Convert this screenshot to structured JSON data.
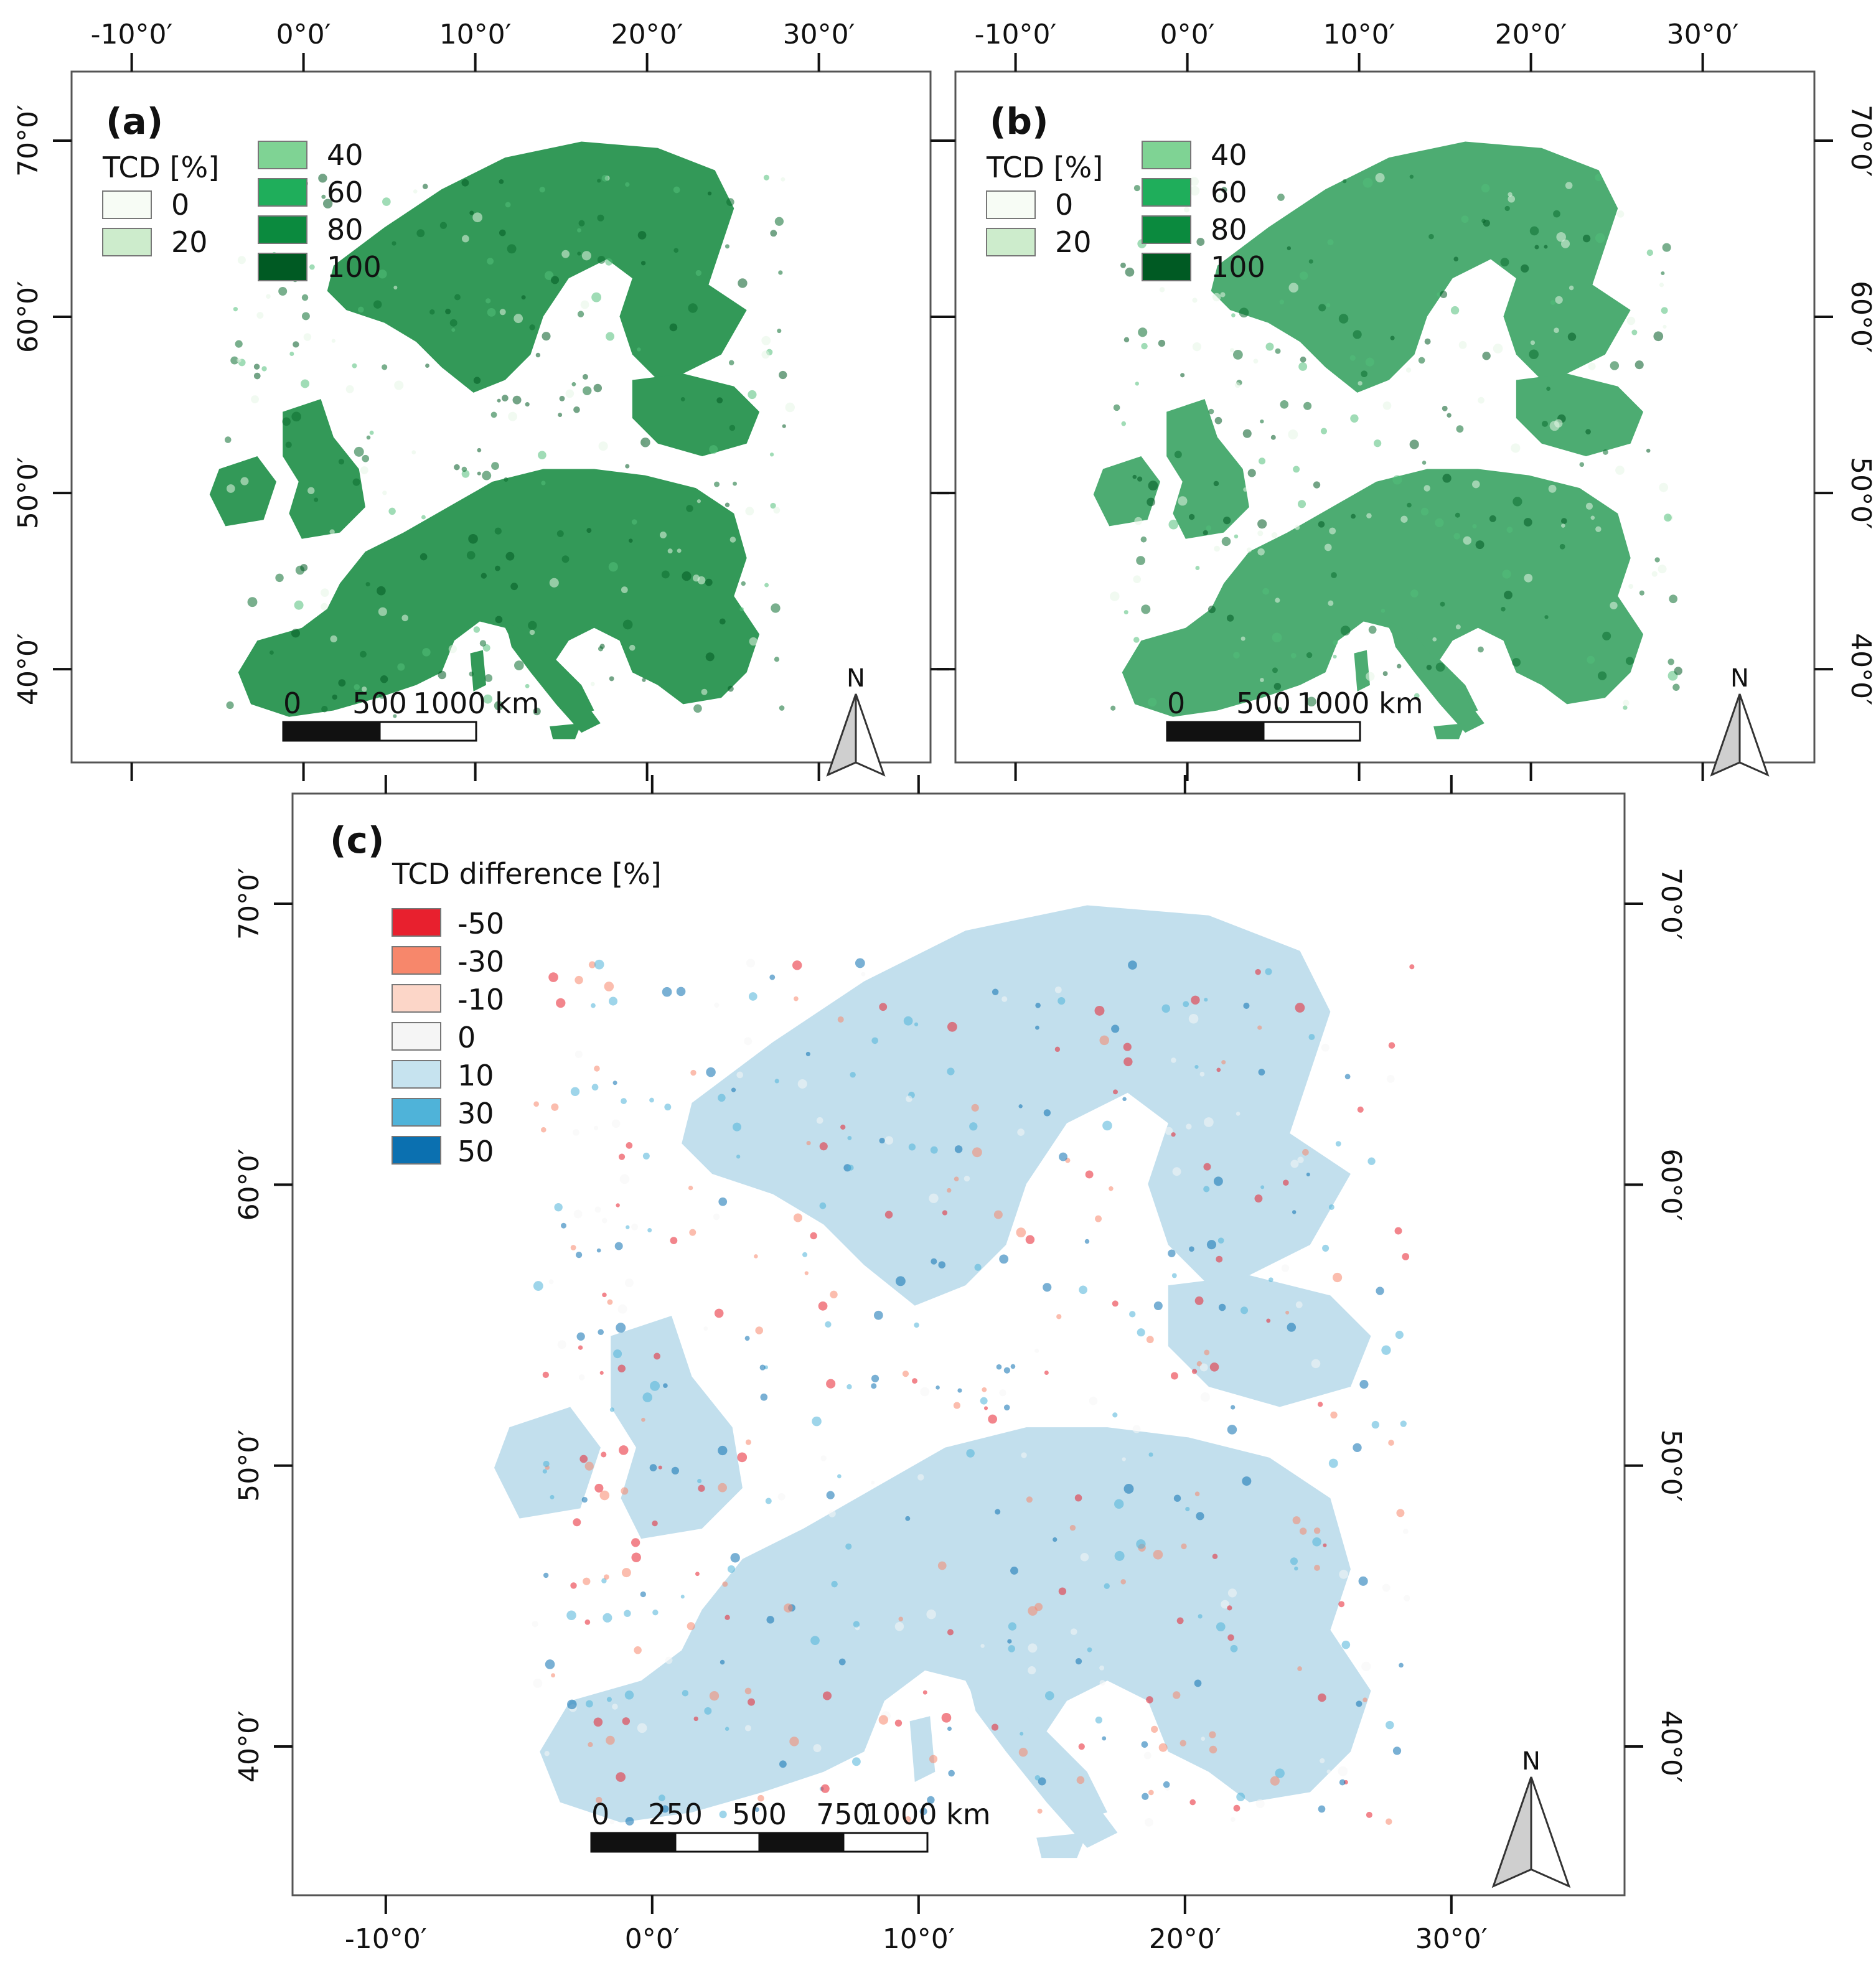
{
  "panels": [
    {
      "label": "(a)",
      "legend_title": "TCD [%]",
      "legend_left": [
        {
          "value": "0",
          "color": "#f7fcf5"
        },
        {
          "value": "20",
          "color": "#cdeccc"
        }
      ],
      "legend_right": [
        {
          "value": "40",
          "color": "#7fd394"
        },
        {
          "value": "60",
          "color": "#1fae5b"
        },
        {
          "value": "80",
          "color": "#0b8a3e"
        },
        {
          "value": "100",
          "color": "#005a23"
        }
      ],
      "lon_ticks": [
        "-10°0′",
        "0°0′",
        "10°0′",
        "20°0′",
        "30°0′"
      ],
      "lat_ticks": [
        "70°0′",
        "60°0′",
        "50°0′",
        "40°0′"
      ],
      "scale_labels": [
        "0",
        "500",
        "1000 km"
      ],
      "north": "N",
      "land_color": "#1d8f47"
    },
    {
      "label": "(b)",
      "legend_title": "TCD [%]",
      "legend_left": [
        {
          "value": "0",
          "color": "#f7fcf5"
        },
        {
          "value": "20",
          "color": "#cdeccc"
        }
      ],
      "legend_right": [
        {
          "value": "40",
          "color": "#7fd394"
        },
        {
          "value": "60",
          "color": "#1fae5b"
        },
        {
          "value": "80",
          "color": "#0b8a3e"
        },
        {
          "value": "100",
          "color": "#005a23"
        }
      ],
      "lon_ticks": [
        "-10°0′",
        "0°0′",
        "10°0′",
        "20°0′",
        "30°0′"
      ],
      "lat_ticks": [
        "70°0′",
        "60°0′",
        "50°0′",
        "40°0′"
      ],
      "scale_labels": [
        "0",
        "500",
        "1000 km"
      ],
      "north": "N",
      "land_color": "#3aa463"
    },
    {
      "label": "(c)",
      "legend_title": "TCD difference [%]",
      "legend": [
        {
          "value": "-50",
          "color": "#e8202e"
        },
        {
          "value": "-30",
          "color": "#f7876b"
        },
        {
          "value": "-10",
          "color": "#fcd6c8"
        },
        {
          "value": "0",
          "color": "#f5f5f5"
        },
        {
          "value": "10",
          "color": "#c6e3ef"
        },
        {
          "value": "30",
          "color": "#4fb3d9"
        },
        {
          "value": "50",
          "color": "#0b70b0"
        }
      ],
      "lon_ticks": [
        "-10°0′",
        "0°0′",
        "10°0′",
        "20°0′",
        "30°0′"
      ],
      "lat_ticks": [
        "70°0′",
        "60°0′",
        "50°0′",
        "40°0′"
      ],
      "scale_labels": [
        "0",
        "250",
        "500",
        "750",
        "1000 km"
      ],
      "north": "N",
      "land_color": "#bcdcec"
    }
  ]
}
